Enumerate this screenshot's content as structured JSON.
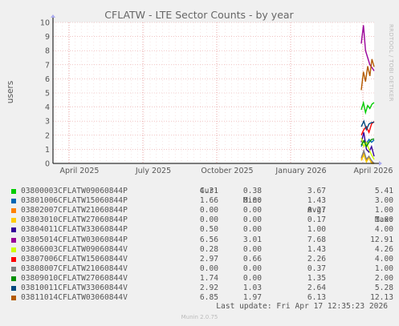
{
  "title": "CFLATW - LTE Sector Counts - by year",
  "side_label": "RRDTOOL / TOBI OETIKER",
  "footer": "Munin 2.0.75",
  "last_update": "Last update: Fri Apr 17 12:35:23 2026",
  "legend_headers": {
    "cur": "Cur:",
    "min": "Min:",
    "avg": "Avg:",
    "max": "Max:"
  },
  "chart_data": {
    "type": "line",
    "ylabel": "users",
    "ylim": [
      0,
      10
    ],
    "yticks": [
      "0",
      "1",
      "2",
      "3",
      "4",
      "5",
      "6",
      "7",
      "8",
      "9",
      "10"
    ],
    "xticks": [
      "April 2025",
      "July 2025",
      "October 2025",
      "January 2026",
      "April 2026"
    ],
    "grid": true,
    "series": [
      {
        "name": "03800003CFLATW09060844P",
        "color": "#00cc00",
        "cur": "4.31",
        "min": "0.38",
        "avg": "3.67",
        "max": "5.41",
        "values": [
          3.8,
          4.3,
          3.6,
          4.1,
          3.9,
          4.2,
          4.31
        ]
      },
      {
        "name": "03801006CFLATW15060844P",
        "color": "#0066b3",
        "cur": "1.66",
        "min": "0.00",
        "avg": "1.43",
        "max": "3.00",
        "values": [
          1.2,
          1.6,
          1.4,
          1.7,
          1.5,
          1.66
        ]
      },
      {
        "name": "03802007CFLATW21060844P",
        "color": "#ff8000",
        "cur": "0.00",
        "min": "0.00",
        "avg": "0.27",
        "max": "1.00",
        "values": [
          0.3,
          0.8,
          0.2,
          0.5,
          0.1,
          0.0
        ]
      },
      {
        "name": "03803010CFLATW27060844P",
        "color": "#ffcc00",
        "cur": "0.00",
        "min": "0.00",
        "avg": "0.17",
        "max": "1.00",
        "values": [
          0.2,
          0.6,
          0.1,
          0.4,
          0.0,
          0.0
        ]
      },
      {
        "name": "03804011CFLATW33060844P",
        "color": "#330099",
        "cur": "0.50",
        "min": "0.00",
        "avg": "1.00",
        "max": "4.00",
        "values": [
          1.5,
          2.2,
          1.0,
          0.8,
          1.2,
          0.5
        ]
      },
      {
        "name": "03805014CFLATW03060844P",
        "color": "#990099",
        "cur": "6.56",
        "min": "3.01",
        "avg": "7.68",
        "max": "12.91",
        "values": [
          8.5,
          9.8,
          8.0,
          7.5,
          7.0,
          6.8,
          6.56
        ]
      },
      {
        "name": "03806003CFLATW09060844V",
        "color": "#ccff00",
        "cur": "0.28",
        "min": "0.00",
        "avg": "1.43",
        "max": "4.26",
        "values": [
          1.8,
          1.2,
          1.5,
          1.0,
          0.6,
          0.28
        ]
      },
      {
        "name": "03807006CFLATW15060844V",
        "color": "#ff0000",
        "cur": "2.97",
        "min": "0.66",
        "avg": "2.26",
        "max": "4.00",
        "values": [
          2.0,
          2.4,
          2.6,
          2.2,
          2.8,
          2.97
        ]
      },
      {
        "name": "03808007CFLATW21060844V",
        "color": "#808080",
        "cur": "0.00",
        "min": "0.00",
        "avg": "0.37",
        "max": "1.00",
        "values": [
          0.4,
          0.9,
          0.3,
          0.5,
          0.2,
          0.0
        ]
      },
      {
        "name": "03809010CFLATW27060844V",
        "color": "#008f00",
        "cur": "1.74",
        "min": "0.00",
        "avg": "1.35",
        "max": "2.00",
        "values": [
          1.3,
          1.6,
          1.2,
          1.5,
          1.7,
          1.74
        ]
      },
      {
        "name": "03810011CFLATW33060844V",
        "color": "#00487d",
        "cur": "2.92",
        "min": "1.03",
        "avg": "2.64",
        "max": "5.28",
        "values": [
          2.6,
          3.0,
          2.4,
          2.8,
          2.9,
          2.92
        ]
      },
      {
        "name": "03811014CFLATW03060844V",
        "color": "#b35a00",
        "cur": "6.85",
        "min": "1.97",
        "avg": "6.13",
        "max": "12.13",
        "values": [
          5.2,
          6.5,
          5.8,
          6.9,
          6.2,
          7.4,
          6.85
        ]
      }
    ]
  }
}
